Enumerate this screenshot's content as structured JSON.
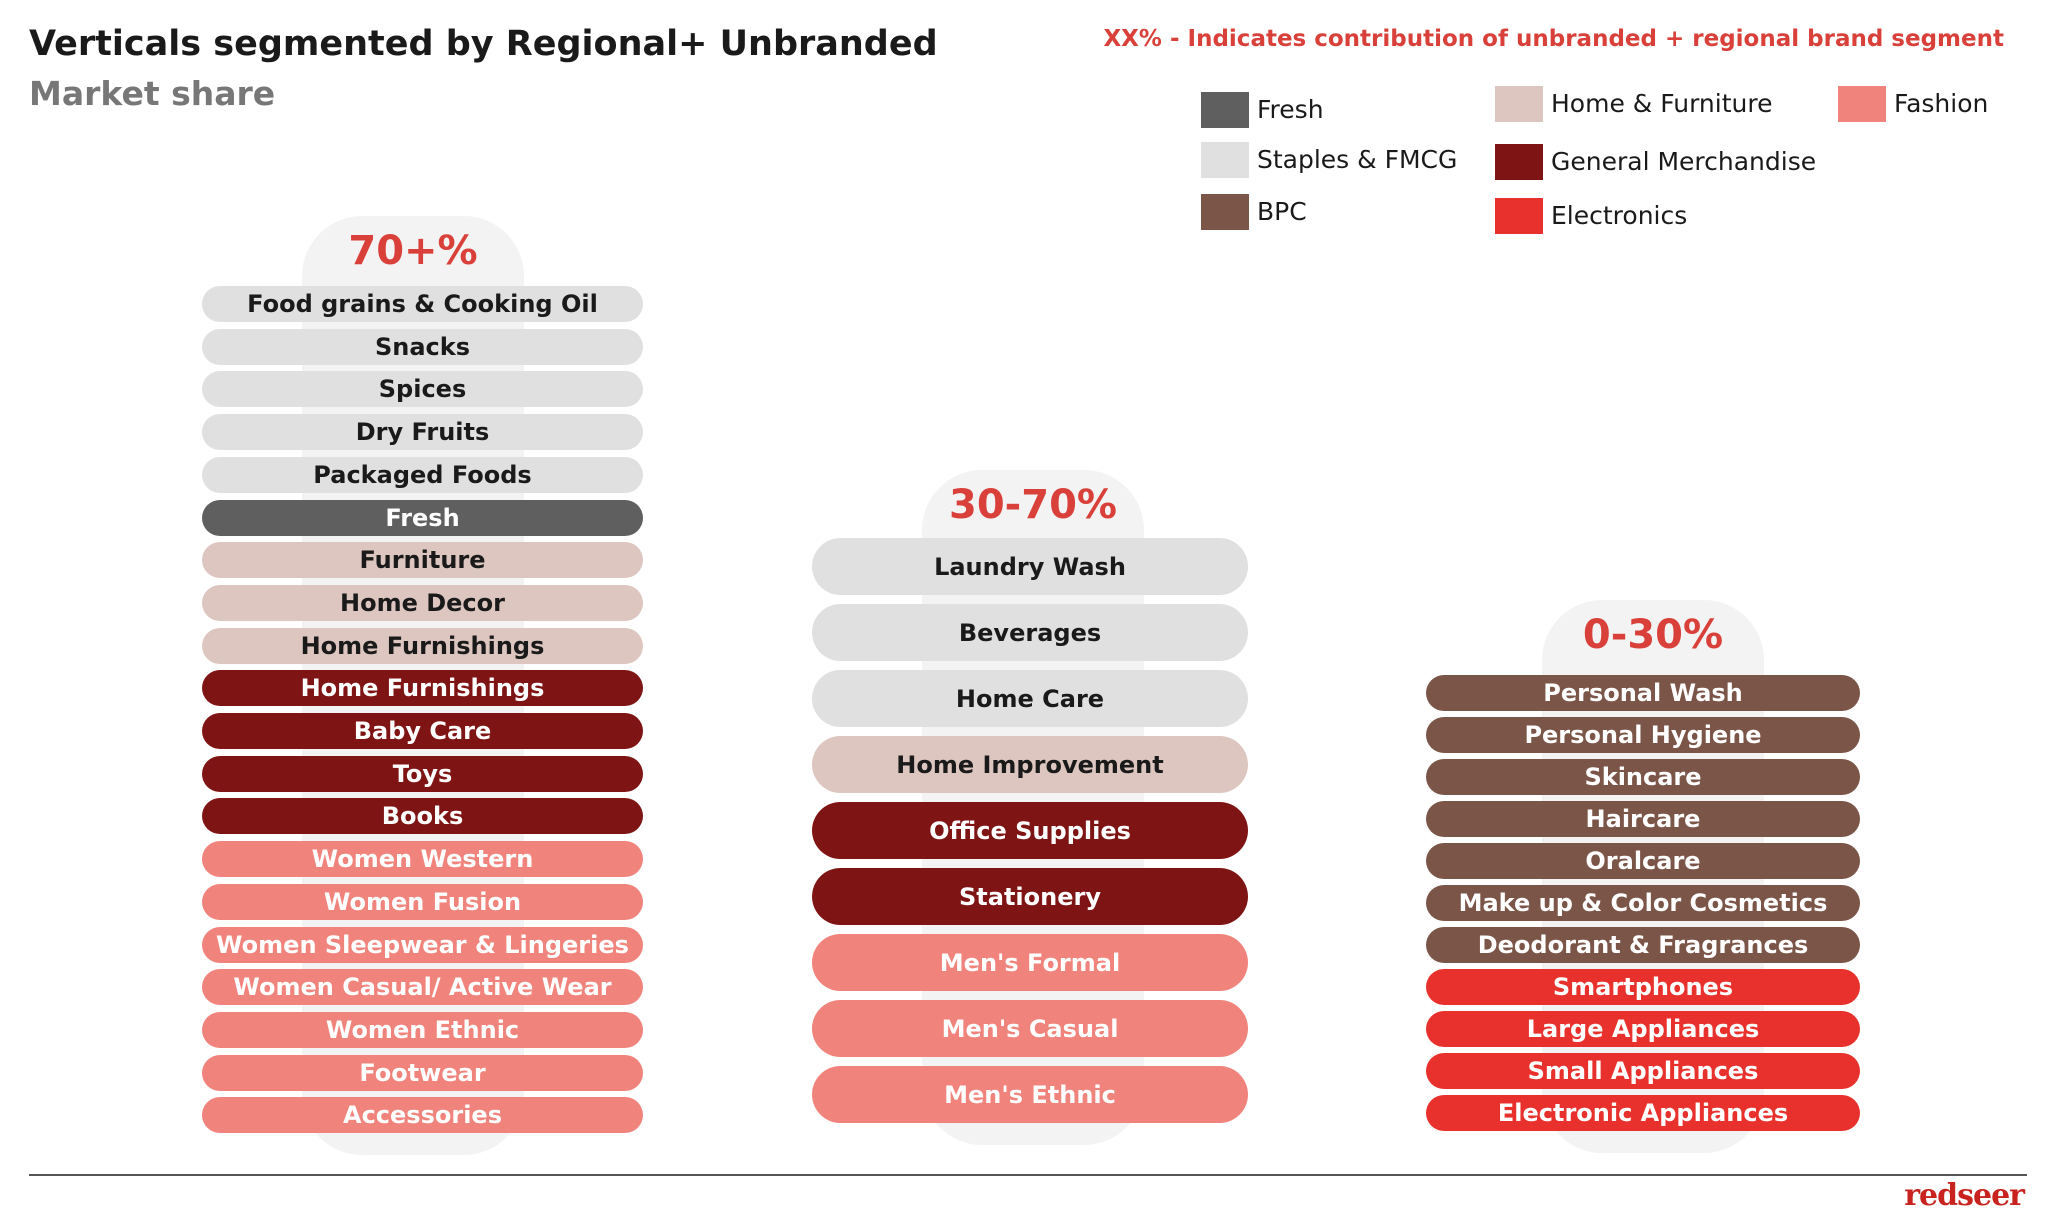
{
  "header": {
    "title": "Verticals segmented by Regional+ Unbranded",
    "subtitle": "Market share"
  },
  "legend": {
    "note": "XX% -  Indicates contribution of unbranded + regional brand segment",
    "items": [
      {
        "label": "Fresh",
        "color": "#5f5f5f"
      },
      {
        "label": "Staples & FMCG",
        "color": "#e0e0e0"
      },
      {
        "label": "BPC",
        "color": "#7a5548"
      },
      {
        "label": "Home & Furniture",
        "color": "#dcc6bf"
      },
      {
        "label": "General Merchandise",
        "color": "#7f1414"
      },
      {
        "label": "Electronics",
        "color": "#e8312c"
      },
      {
        "label": "Fashion",
        "color": "#f0837b"
      }
    ]
  },
  "columns": [
    {
      "heading": "70+%",
      "items": [
        {
          "label": "Food grains & Cooking Oil",
          "color": "#e0e0e0"
        },
        {
          "label": "Snacks",
          "color": "#e0e0e0"
        },
        {
          "label": "Spices",
          "color": "#e0e0e0"
        },
        {
          "label": "Dry Fruits",
          "color": "#e0e0e0"
        },
        {
          "label": "Packaged Foods",
          "color": "#e0e0e0"
        },
        {
          "label": "Fresh",
          "color": "#5f5f5f"
        },
        {
          "label": "Furniture",
          "color": "#dcc6bf"
        },
        {
          "label": "Home Decor",
          "color": "#dcc6bf"
        },
        {
          "label": "Home Furnishings",
          "color": "#dcc6bf"
        },
        {
          "label": "Home Furnishings",
          "color": "#7f1414"
        },
        {
          "label": "Baby Care",
          "color": "#7f1414"
        },
        {
          "label": "Toys",
          "color": "#7f1414"
        },
        {
          "label": "Books",
          "color": "#7f1414"
        },
        {
          "label": "Women Western",
          "color": "#f0837b"
        },
        {
          "label": "Women Fusion",
          "color": "#f0837b"
        },
        {
          "label": "Women Sleepwear & Lingeries",
          "color": "#f0837b"
        },
        {
          "label": "Women Casual/ Active Wear",
          "color": "#f0837b"
        },
        {
          "label": "Women Ethnic",
          "color": "#f0837b"
        },
        {
          "label": "Footwear",
          "color": "#f0837b"
        },
        {
          "label": "Accessories",
          "color": "#f0837b"
        }
      ]
    },
    {
      "heading": "30-70%",
      "items": [
        {
          "label": "Laundry Wash",
          "color": "#e0e0e0"
        },
        {
          "label": "Beverages",
          "color": "#e0e0e0"
        },
        {
          "label": "Home Care",
          "color": "#e0e0e0"
        },
        {
          "label": "Home Improvement",
          "color": "#dcc6bf"
        },
        {
          "label": "Office Supplies",
          "color": "#7f1414"
        },
        {
          "label": "Stationery",
          "color": "#7f1414"
        },
        {
          "label": "Men's Formal",
          "color": "#f0837b"
        },
        {
          "label": "Men's Casual",
          "color": "#f0837b"
        },
        {
          "label": "Men's Ethnic",
          "color": "#f0837b"
        }
      ]
    },
    {
      "heading": "0-30%",
      "items": [
        {
          "label": "Personal Wash",
          "color": "#7a5548"
        },
        {
          "label": "Personal Hygiene",
          "color": "#7a5548"
        },
        {
          "label": "Skincare",
          "color": "#7a5548"
        },
        {
          "label": "Haircare",
          "color": "#7a5548"
        },
        {
          "label": "Oralcare",
          "color": "#7a5548"
        },
        {
          "label": "Make up & Color Cosmetics",
          "color": "#7a5548"
        },
        {
          "label": "Deodorant & Fragrances",
          "color": "#7a5548"
        },
        {
          "label": "Smartphones",
          "color": "#e8312c"
        },
        {
          "label": "Large Appliances",
          "color": "#e8312c"
        },
        {
          "label": "Small Appliances",
          "color": "#e8312c"
        },
        {
          "label": "Electronic Appliances",
          "color": "#e8312c"
        }
      ]
    }
  ],
  "footer": {
    "brand": "redseer"
  }
}
